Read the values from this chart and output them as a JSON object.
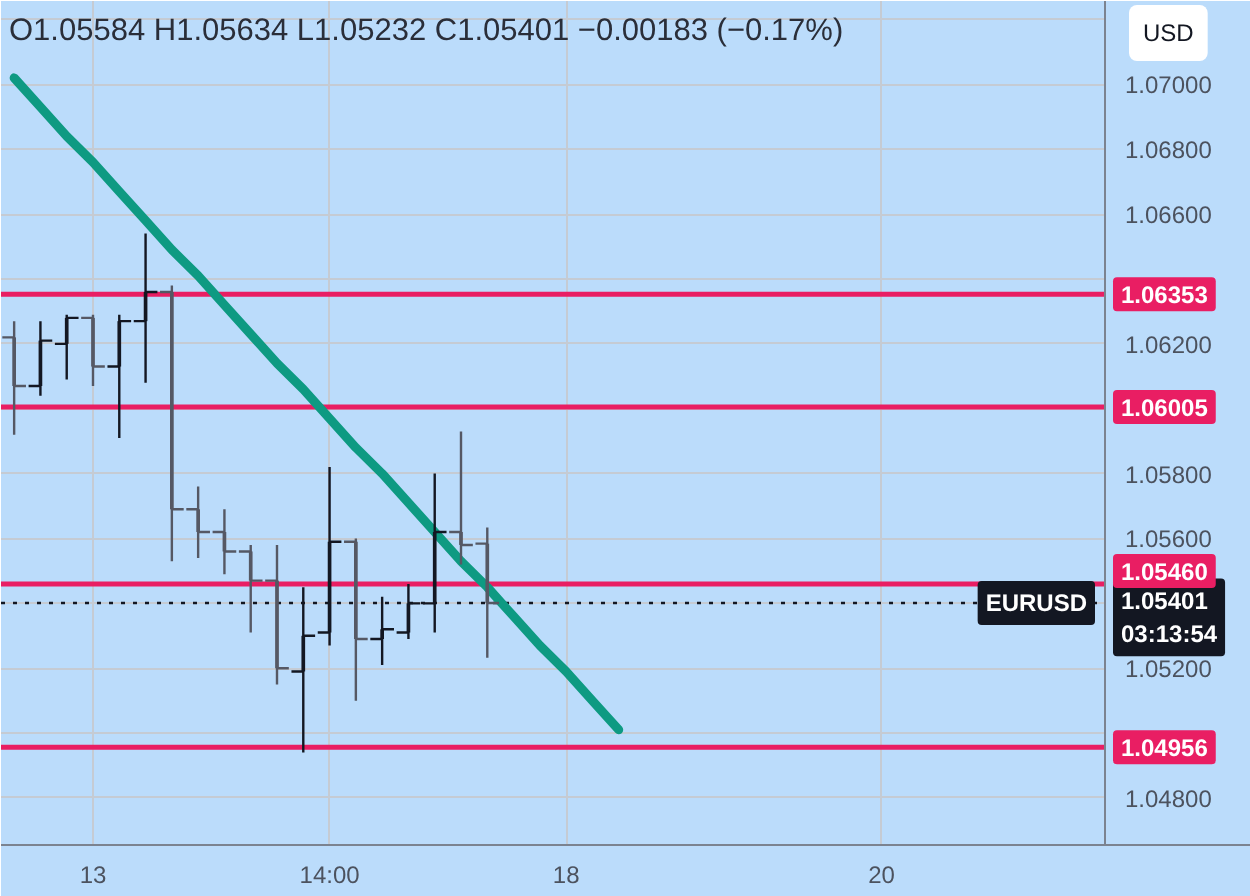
{
  "chart_data": {
    "type": "candlestick",
    "title": "O1.05584 H1.05634 L1.05232 C1.05401 −0.00183 (−0.17%)",
    "categories": [
      null,
      null,
      null,
      "13",
      null,
      null,
      null,
      null,
      null,
      null,
      null,
      null,
      "14:00",
      null,
      null,
      null,
      null,
      null,
      null,
      null,
      null,
      "18",
      null,
      null,
      null,
      null,
      null,
      null,
      null,
      null,
      null,
      null,
      null,
      "20",
      null,
      null,
      null,
      null,
      null,
      null,
      null,
      null
    ],
    "series": [
      {
        "colors": [
          "#555864",
          "#131722",
          "#131722",
          "#555864",
          "#131722",
          "#131722",
          "#555864",
          "#555864",
          "#555864",
          "#555864",
          "#555864",
          "#131722",
          "#131722",
          "#555864",
          "#131722",
          "#131722",
          "#131722",
          "#555864",
          "#555864",
          null,
          null,
          null,
          null,
          null,
          null,
          null,
          null,
          null,
          null,
          null,
          null,
          null,
          null,
          null,
          null,
          null,
          null,
          null,
          null,
          null,
          null,
          null
        ],
        "ohlc": [
          [
            1.0622,
            1.0627,
            1.0592,
            1.0607
          ],
          [
            1.0607,
            1.0627,
            1.0604,
            1.0621
          ],
          [
            1.062,
            1.0629,
            1.0609,
            1.0628
          ],
          [
            1.0628,
            1.0629,
            1.0607,
            1.0613
          ],
          [
            1.0613,
            1.0629,
            1.0591,
            1.0627
          ],
          [
            1.0627,
            1.0654,
            1.0608,
            1.0636
          ],
          [
            1.0636,
            1.0638,
            1.0553,
            1.0569
          ],
          [
            1.0569,
            1.0576,
            1.0554,
            1.0562
          ],
          [
            1.0562,
            1.0569,
            1.0549,
            1.0556
          ],
          [
            1.0556,
            1.0558,
            1.0531,
            1.0547
          ],
          [
            1.0547,
            1.0558,
            1.0515,
            1.052
          ],
          [
            1.0519,
            1.0545,
            1.0494,
            1.053
          ],
          [
            1.0531,
            1.0582,
            1.0527,
            1.0559
          ],
          [
            1.0559,
            1.056,
            1.051,
            1.0529
          ],
          [
            1.0529,
            1.0542,
            1.0521,
            1.0532
          ],
          [
            1.0531,
            1.0546,
            1.0529,
            1.054
          ],
          [
            1.054,
            1.058,
            1.0531,
            1.0562
          ],
          [
            1.0562,
            1.0593,
            1.0552,
            1.0558
          ],
          [
            1.05584,
            1.05634,
            1.05232,
            1.05401
          ],
          null,
          null,
          null,
          null,
          null,
          null,
          null,
          null,
          null,
          null,
          null,
          null,
          null,
          null,
          null,
          null,
          null,
          null,
          null,
          null,
          null,
          null,
          null
        ]
      },
      {
        "type": "line",
        "color": "#0e9a82",
        "values": [
          1.0702,
          1.0693,
          1.0684,
          1.0676,
          1.0667,
          1.0658,
          1.0649,
          1.0641,
          1.0632,
          1.0623,
          1.0614,
          1.0606,
          1.0597,
          1.0588,
          1.058,
          1.0571,
          1.0562,
          1.0553,
          1.0545,
          1.0536,
          1.0527,
          1.0519,
          1.051,
          1.0501,
          null,
          null,
          null,
          null,
          null,
          null,
          null,
          null,
          null,
          null,
          null,
          null,
          null,
          null,
          null,
          null,
          null,
          null
        ]
      }
    ],
    "ylim": [
      1.04655,
      1.07257
    ],
    "yticks": [
      {
        "value": 1.048,
        "label": "1.04800"
      },
      {
        "value": 1.05,
        "label": null
      },
      {
        "value": 1.052,
        "label": "1.05200"
      },
      {
        "value": 1.054,
        "label": null
      },
      {
        "value": 1.056,
        "label": "1.05600"
      },
      {
        "value": 1.058,
        "label": "1.05800"
      },
      {
        "value": 1.06,
        "label": null
      },
      {
        "value": 1.062,
        "label": "1.06200"
      },
      {
        "value": 1.064,
        "label": null
      },
      {
        "value": 1.066,
        "label": "1.06600"
      },
      {
        "value": 1.068,
        "label": "1.06800"
      },
      {
        "value": 1.07,
        "label": "1.07000"
      },
      {
        "value": 1.072,
        "label": null
      }
    ],
    "ref_lines": [
      {
        "axis": "y",
        "value": 1.06353,
        "label": "1.06353",
        "color": "#e91e63"
      },
      {
        "axis": "y",
        "value": 1.06005,
        "label": "1.06005",
        "color": "#e91e63"
      },
      {
        "axis": "y",
        "value": 1.0546,
        "label": "1.05460",
        "color": "#e91e63"
      },
      {
        "axis": "y",
        "value": 1.04956,
        "label": "1.04956",
        "color": "#e91e63"
      },
      {
        "axis": "y",
        "value": 1.05401,
        "label": "1.05401\n03:13:54",
        "color": "#131722",
        "line_style": "dotted"
      }
    ],
    "annotations": [
      "USD",
      {
        "text": "EURUSD",
        "y": 1.05401
      }
    ],
    "grid": true
  }
}
